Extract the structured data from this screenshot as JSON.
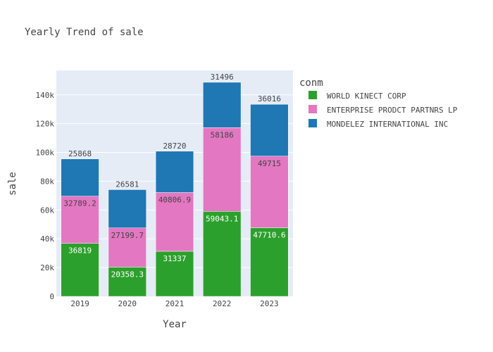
{
  "chart_data": {
    "type": "bar",
    "stacked": true,
    "title": "Yearly Trend of sale",
    "xlabel": "Year",
    "ylabel": "sale",
    "categories": [
      "2019",
      "2020",
      "2021",
      "2022",
      "2023"
    ],
    "ylim": [
      0,
      157000
    ],
    "yticks": [
      0,
      20000,
      40000,
      60000,
      80000,
      100000,
      120000,
      140000
    ],
    "ytick_labels": [
      "0",
      "20k",
      "40k",
      "60k",
      "80k",
      "100k",
      "120k",
      "140k"
    ],
    "grid": true,
    "legend_title": "conm",
    "legend_position": "right",
    "series": [
      {
        "name": "WORLD KINECT CORP",
        "color": "#2ca02c",
        "values": [
          36819,
          20358.3,
          31337,
          59043.1,
          47710.6
        ],
        "labels": [
          "36819",
          "20358.3",
          "31337",
          "59043.1",
          "47710.6"
        ]
      },
      {
        "name": "ENTERPRISE PRODCT PARTNRS LP",
        "color": "#e377c2",
        "values": [
          32789.2,
          27199.7,
          40806.9,
          58186,
          49715
        ],
        "labels": [
          "32789.2",
          "27199.7",
          "40806.9",
          "58186",
          "49715"
        ]
      },
      {
        "name": "MONDELEZ INTERNATIONAL INC",
        "color": "#1f77b4",
        "values": [
          25868,
          26581,
          28720,
          31496,
          36016
        ],
        "labels": [
          "25868",
          "26581",
          "28720",
          "31496",
          "36016"
        ]
      }
    ]
  }
}
